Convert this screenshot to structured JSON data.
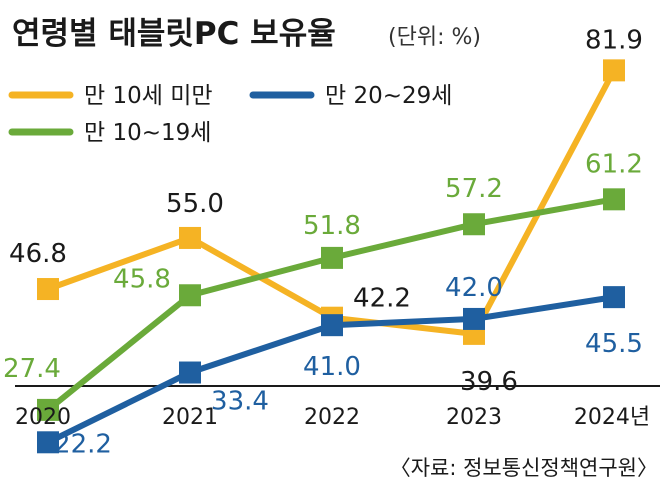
{
  "chart_data": {
    "type": "line",
    "title": "연령별 태블릿PC 보유율",
    "unit": "(단위: %)",
    "categories": [
      "2020",
      "2021",
      "2022",
      "2023",
      "2024년"
    ],
    "series": [
      {
        "name": "만 10세 미만",
        "color": "#f5b324",
        "label_color": "#1a1a1a",
        "values": [
          46.8,
          55.0,
          42.2,
          39.6,
          81.9
        ],
        "labels": [
          "46.8",
          "55.0",
          "42.2",
          "39.6",
          "81.9"
        ]
      },
      {
        "name": "만 20~29세",
        "color": "#1f5fa0",
        "label_color": "#1f5fa0",
        "values": [
          22.2,
          33.4,
          41.0,
          42.0,
          45.5
        ],
        "labels": [
          "22.2",
          "33.4",
          "41.0",
          "42.0",
          "45.5"
        ]
      },
      {
        "name": "만 10~19세",
        "color": "#6aaa3a",
        "label_color": "#6aaa3a",
        "values": [
          27.4,
          45.8,
          51.8,
          57.2,
          61.2
        ],
        "labels": [
          "27.4",
          "45.8",
          "51.8",
          "57.2",
          "61.2"
        ]
      }
    ],
    "source": "〈자료: 정보통신정책연구원〉",
    "grid": false
  }
}
